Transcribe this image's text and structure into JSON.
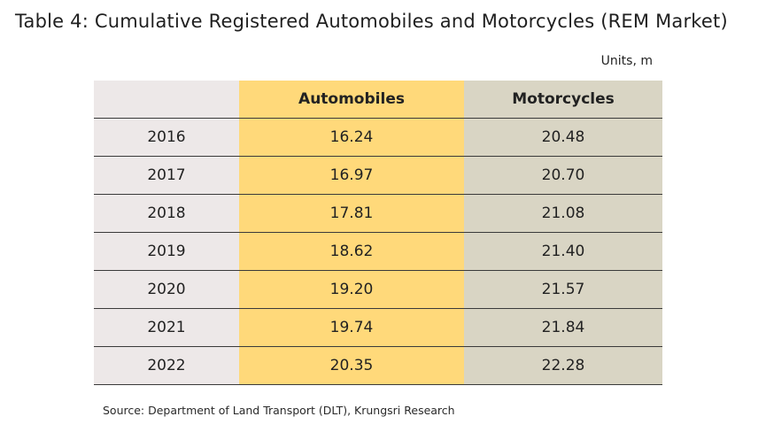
{
  "title": "Table 4: Cumulative Registered Automobiles and Motorcycles (REM Market)",
  "units": "Units, m",
  "table": {
    "headers": [
      "",
      "Automobiles",
      "Motorcycles"
    ],
    "rows": [
      {
        "year": "2016",
        "automobiles": "16.24",
        "motorcycles": "20.48"
      },
      {
        "year": "2017",
        "automobiles": "16.97",
        "motorcycles": "20.70"
      },
      {
        "year": "2018",
        "automobiles": "17.81",
        "motorcycles": "21.08"
      },
      {
        "year": "2019",
        "automobiles": "18.62",
        "motorcycles": "21.40"
      },
      {
        "year": "2020",
        "automobiles": "19.20",
        "motorcycles": "21.57"
      },
      {
        "year": "2021",
        "automobiles": "19.74",
        "motorcycles": "21.84"
      },
      {
        "year": "2022",
        "automobiles": "20.35",
        "motorcycles": "22.28"
      }
    ]
  },
  "source": "Source: Department of Land Transport (DLT), Krungsri Research",
  "colors": {
    "year_column": "#ede8e8",
    "automobiles_column": "#ffd97a",
    "motorcycles_column": "#d9d5c4",
    "row_divider": "#3a3a3a"
  }
}
